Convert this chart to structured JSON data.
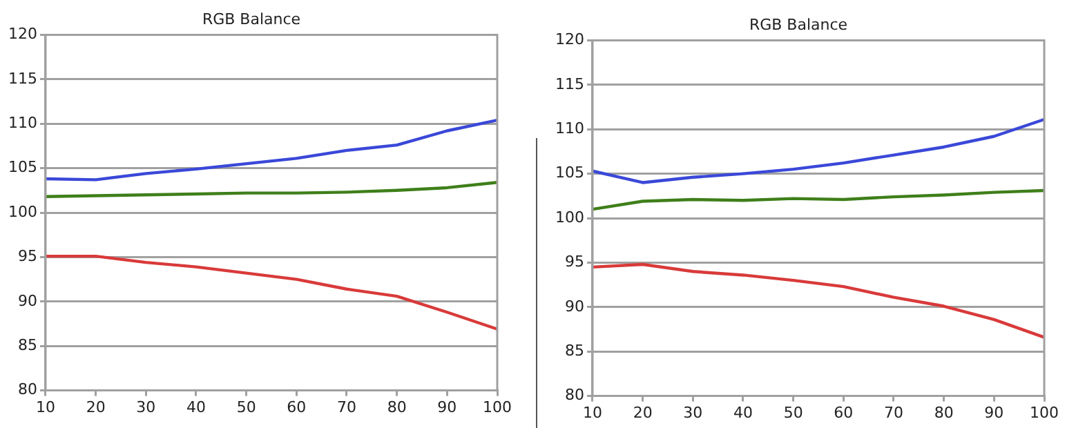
{
  "chart_data": [
    {
      "type": "line",
      "title": "RGB Balance",
      "x": [
        10,
        20,
        30,
        40,
        50,
        60,
        70,
        80,
        90,
        100
      ],
      "xlim": [
        10,
        100
      ],
      "xticks": [
        10,
        20,
        30,
        40,
        50,
        60,
        70,
        80,
        90,
        100
      ],
      "ylim": [
        80,
        120
      ],
      "yticks": [
        80,
        85,
        90,
        95,
        100,
        105,
        110,
        115,
        120
      ],
      "grid": "y",
      "series": [
        {
          "color": "#3a48d8",
          "values": [
            103.8,
            103.7,
            104.4,
            104.9,
            105.5,
            106.1,
            107.0,
            107.6,
            109.2,
            110.4
          ]
        },
        {
          "color": "#3f7f1a",
          "values": [
            101.8,
            101.9,
            102.0,
            102.1,
            102.2,
            102.2,
            102.3,
            102.5,
            102.8,
            103.4
          ]
        },
        {
          "color": "#d93a3a",
          "values": [
            95.1,
            95.1,
            94.4,
            93.9,
            93.2,
            92.5,
            91.4,
            90.6,
            88.8,
            86.9
          ]
        }
      ]
    },
    {
      "type": "line",
      "title": "RGB Balance",
      "x": [
        10,
        20,
        30,
        40,
        50,
        60,
        70,
        80,
        90,
        100
      ],
      "xlim": [
        10,
        100
      ],
      "xticks": [
        10,
        20,
        30,
        40,
        50,
        60,
        70,
        80,
        90,
        100
      ],
      "ylim": [
        80,
        120
      ],
      "yticks": [
        80,
        85,
        90,
        95,
        100,
        105,
        110,
        115,
        120
      ],
      "grid": "y",
      "series": [
        {
          "color": "#3a48d8",
          "values": [
            105.3,
            104.0,
            104.6,
            105.0,
            105.5,
            106.2,
            107.1,
            108.0,
            109.2,
            111.1
          ]
        },
        {
          "color": "#3f7f1a",
          "values": [
            101.0,
            101.9,
            102.1,
            102.0,
            102.2,
            102.1,
            102.4,
            102.6,
            102.9,
            103.1
          ]
        },
        {
          "color": "#d93a3a",
          "values": [
            94.5,
            94.8,
            94.0,
            93.6,
            93.0,
            92.3,
            91.1,
            90.1,
            88.6,
            86.6
          ]
        }
      ]
    }
  ]
}
